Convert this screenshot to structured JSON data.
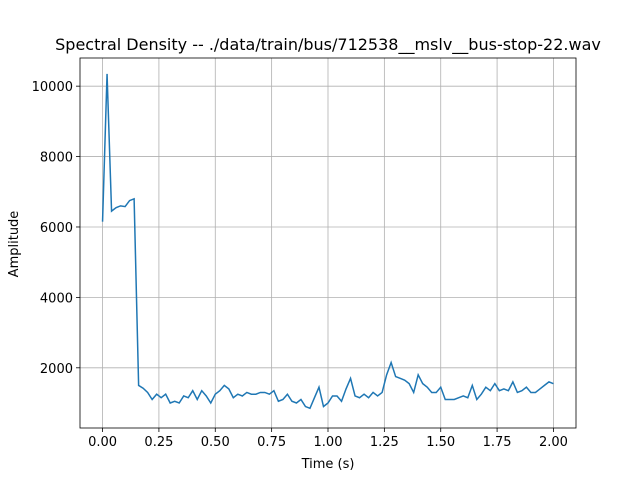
{
  "chart_data": {
    "type": "line",
    "title": "Spectral Density -- ./data/train/bus/712538__mslv__bus-stop-22.wav",
    "x_label": "Time (s)",
    "y_label": "Amplitude",
    "x": [
      0,
      0.02,
      0.04,
      0.06,
      0.08,
      0.1,
      0.12,
      0.14,
      0.16,
      0.18,
      0.2,
      0.22,
      0.24,
      0.26,
      0.28,
      0.3,
      0.32,
      0.34,
      0.36,
      0.38,
      0.4,
      0.42,
      0.44,
      0.46,
      0.48,
      0.5,
      0.52,
      0.54,
      0.56,
      0.58,
      0.6,
      0.62,
      0.64,
      0.66,
      0.68,
      0.7,
      0.72,
      0.74,
      0.76,
      0.78,
      0.8,
      0.82,
      0.84,
      0.86,
      0.88,
      0.9,
      0.92,
      0.94,
      0.96,
      0.98,
      1,
      1.02,
      1.04,
      1.06,
      1.08,
      1.1,
      1.12,
      1.14,
      1.16,
      1.18,
      1.2,
      1.22,
      1.24,
      1.26,
      1.28,
      1.3,
      1.32,
      1.34,
      1.36,
      1.38,
      1.4,
      1.42,
      1.44,
      1.46,
      1.48,
      1.5,
      1.52,
      1.54,
      1.56,
      1.58,
      1.6,
      1.62,
      1.64,
      1.66,
      1.68,
      1.7,
      1.72,
      1.74,
      1.76,
      1.78,
      1.8,
      1.82,
      1.84,
      1.86,
      1.88,
      1.9,
      1.92,
      1.94,
      1.96,
      1.98,
      2
    ],
    "series": [
      {
        "color": "#1f77b4",
        "values": [
          6150,
          10350,
          6450,
          6550,
          6600,
          6580,
          6750,
          6800,
          1500,
          1420,
          1300,
          1100,
          1250,
          1150,
          1250,
          1000,
          1050,
          1000,
          1200,
          1150,
          1350,
          1100,
          1350,
          1200,
          1000,
          1250,
          1350,
          1500,
          1400,
          1150,
          1250,
          1200,
          1300,
          1250,
          1250,
          1300,
          1300,
          1250,
          1350,
          1050,
          1100,
          1250,
          1050,
          1000,
          1100,
          900,
          850,
          1150,
          1450,
          900,
          1000,
          1200,
          1200,
          1050,
          1400,
          1700,
          1200,
          1150,
          1250,
          1150,
          1300,
          1200,
          1300,
          1800,
          2150,
          1750,
          1700,
          1650,
          1550,
          1300,
          1800,
          1550,
          1450,
          1300,
          1300,
          1450,
          1100,
          1100,
          1100,
          1150,
          1200,
          1150,
          1500,
          1100,
          1250,
          1450,
          1350,
          1550,
          1350,
          1400,
          1350,
          1600,
          1300,
          1350,
          1450,
          1300,
          1300,
          1400,
          1500,
          1600,
          1550
        ]
      }
    ],
    "xlim": [
      -0.1,
      2.1
    ],
    "ylim": [
      290,
      10800
    ],
    "xticks": [
      {
        "value": 0,
        "label": "0.00"
      },
      {
        "value": 0.25,
        "label": "0.25"
      },
      {
        "value": 0.5,
        "label": "0.50"
      },
      {
        "value": 0.75,
        "label": "0.75"
      },
      {
        "value": 1,
        "label": "1.00"
      },
      {
        "value": 1.25,
        "label": "1.25"
      },
      {
        "value": 1.5,
        "label": "1.50"
      },
      {
        "value": 1.75,
        "label": "1.75"
      },
      {
        "value": 2,
        "label": "2.00"
      }
    ],
    "yticks": [
      2000,
      4000,
      6000,
      8000,
      10000
    ],
    "grid": true
  }
}
